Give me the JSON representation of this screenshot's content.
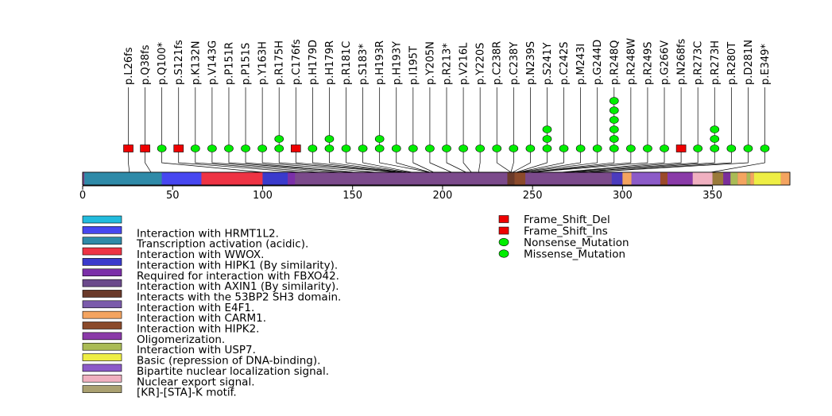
{
  "chart_data": {
    "type": "lollipop",
    "protein_length": 393,
    "axis": {
      "min": 0,
      "max": 393,
      "ticks": [
        0,
        50,
        100,
        150,
        200,
        250,
        300,
        350
      ]
    },
    "track_color": "#7b4a8b",
    "domains": [
      {
        "start": 1,
        "end": 44,
        "color": "#2e8aa8",
        "label": "Transcription activation (acidic)."
      },
      {
        "start": 44,
        "end": 66,
        "color": "#4747f0",
        "label": "Interaction with HRMT1L2."
      },
      {
        "start": 66,
        "end": 100,
        "color": "#ee3344",
        "label": "Interaction with WWOX."
      },
      {
        "start": 100,
        "end": 114,
        "color": "#3a3acc",
        "label": "Interaction with HIPK1 (By similarity)."
      },
      {
        "start": 114,
        "end": 118,
        "color": "#7b2fa8",
        "label": "Required for interaction with FBXO42."
      },
      {
        "start": 236,
        "end": 240,
        "color": "#6a3a2a",
        "label": "Interacts with the 53BP2 SH3 domain."
      },
      {
        "start": 240,
        "end": 246,
        "color": "#8b4a2b",
        "label": "Interaction with HIPK2."
      },
      {
        "start": 294,
        "end": 300,
        "color": "#4b3bbd",
        "label": "Interaction with E4F1."
      },
      {
        "start": 300,
        "end": 305,
        "color": "#f4a460",
        "label": "Interaction with CARM1."
      },
      {
        "start": 305,
        "end": 321,
        "color": "#8c5bc8",
        "label": "Bipartite nuclear localization signal."
      },
      {
        "start": 321,
        "end": 325,
        "color": "#9b4a2b",
        "label": "Interaction with HIPK2."
      },
      {
        "start": 325,
        "end": 339,
        "color": "#8a3aa8",
        "label": "Oligomerization."
      },
      {
        "start": 339,
        "end": 350,
        "color": "#f0b0c0",
        "label": "Nuclear export signal."
      },
      {
        "start": 350,
        "end": 356,
        "color": "#9a7a3a",
        "label": "[KR]-[STA]-K motif."
      },
      {
        "start": 356,
        "end": 360,
        "color": "#7b2f9b",
        "label": "Interaction with FBXO42."
      },
      {
        "start": 360,
        "end": 364,
        "color": "#aabb55",
        "label": "Interaction with USP7."
      },
      {
        "start": 364,
        "end": 369,
        "color": "#f4a460",
        "label": "Interaction with CARM1."
      },
      {
        "start": 369,
        "end": 371,
        "color": "#aabb55",
        "label": "Interaction with USP7."
      },
      {
        "start": 371,
        "end": 373,
        "color": "#f4a460",
        "label": "Interaction with CARM1."
      },
      {
        "start": 373,
        "end": 388,
        "color": "#eeee44",
        "label": "Basic (repression of DNA-binding)."
      },
      {
        "start": 388,
        "end": 393,
        "color": "#f4a460",
        "label": "Interaction with CARM1."
      }
    ],
    "mutations": [
      {
        "label": "p.L26fs",
        "pos": 26,
        "count": 1,
        "type": "Frame_Shift_Del"
      },
      {
        "label": "p.Q38fs",
        "pos": 38,
        "count": 1,
        "type": "Frame_Shift_Del"
      },
      {
        "label": "p.Q100*",
        "pos": 100,
        "count": 1,
        "type": "Nonsense_Mutation"
      },
      {
        "label": "p.S121fs",
        "pos": 121,
        "count": 1,
        "type": "Frame_Shift_Del"
      },
      {
        "label": "p.K132N",
        "pos": 132,
        "count": 1,
        "type": "Missense_Mutation"
      },
      {
        "label": "p.V143G",
        "pos": 143,
        "count": 1,
        "type": "Missense_Mutation"
      },
      {
        "label": "p.P151R",
        "pos": 151,
        "count": 1,
        "type": "Missense_Mutation"
      },
      {
        "label": "p.P151S",
        "pos": 151,
        "count": 1,
        "type": "Missense_Mutation"
      },
      {
        "label": "p.Y163H",
        "pos": 163,
        "count": 1,
        "type": "Missense_Mutation"
      },
      {
        "label": "p.R175H",
        "pos": 175,
        "count": 2,
        "type": "Missense_Mutation"
      },
      {
        "label": "p.C176fs",
        "pos": 176,
        "count": 1,
        "type": "Frame_Shift_Del"
      },
      {
        "label": "p.H179D",
        "pos": 179,
        "count": 1,
        "type": "Missense_Mutation"
      },
      {
        "label": "p.H179R",
        "pos": 179,
        "count": 2,
        "type": "Missense_Mutation"
      },
      {
        "label": "p.R181C",
        "pos": 181,
        "count": 1,
        "type": "Missense_Mutation"
      },
      {
        "label": "p.S183*",
        "pos": 183,
        "count": 1,
        "type": "Nonsense_Mutation"
      },
      {
        "label": "p.H193R",
        "pos": 193,
        "count": 2,
        "type": "Missense_Mutation"
      },
      {
        "label": "p.H193Y",
        "pos": 193,
        "count": 1,
        "type": "Missense_Mutation"
      },
      {
        "label": "p.I195T",
        "pos": 195,
        "count": 1,
        "type": "Missense_Mutation"
      },
      {
        "label": "p.Y205N",
        "pos": 205,
        "count": 1,
        "type": "Missense_Mutation"
      },
      {
        "label": "p.R213*",
        "pos": 213,
        "count": 1,
        "type": "Nonsense_Mutation"
      },
      {
        "label": "p.V216L",
        "pos": 216,
        "count": 1,
        "type": "Missense_Mutation"
      },
      {
        "label": "p.Y220S",
        "pos": 220,
        "count": 1,
        "type": "Missense_Mutation"
      },
      {
        "label": "p.C238R",
        "pos": 238,
        "count": 1,
        "type": "Missense_Mutation"
      },
      {
        "label": "p.C238Y",
        "pos": 238,
        "count": 1,
        "type": "Missense_Mutation"
      },
      {
        "label": "p.N239S",
        "pos": 239,
        "count": 1,
        "type": "Missense_Mutation"
      },
      {
        "label": "p.S241Y",
        "pos": 241,
        "count": 3,
        "type": "Missense_Mutation"
      },
      {
        "label": "p.C242S",
        "pos": 242,
        "count": 1,
        "type": "Missense_Mutation"
      },
      {
        "label": "p.M243I",
        "pos": 243,
        "count": 1,
        "type": "Missense_Mutation"
      },
      {
        "label": "p.G244D",
        "pos": 244,
        "count": 1,
        "type": "Missense_Mutation"
      },
      {
        "label": "p.R248Q",
        "pos": 248,
        "count": 6,
        "type": "Missense_Mutation"
      },
      {
        "label": "p.R248W",
        "pos": 248,
        "count": 1,
        "type": "Missense_Mutation"
      },
      {
        "label": "p.R249S",
        "pos": 249,
        "count": 1,
        "type": "Missense_Mutation"
      },
      {
        "label": "p.G266V",
        "pos": 266,
        "count": 1,
        "type": "Missense_Mutation"
      },
      {
        "label": "p.N268fs",
        "pos": 268,
        "count": 1,
        "type": "Frame_Shift_Del"
      },
      {
        "label": "p.R273C",
        "pos": 273,
        "count": 1,
        "type": "Missense_Mutation"
      },
      {
        "label": "p.R273H",
        "pos": 273,
        "count": 3,
        "type": "Missense_Mutation"
      },
      {
        "label": "p.R280T",
        "pos": 280,
        "count": 1,
        "type": "Missense_Mutation"
      },
      {
        "label": "p.D281N",
        "pos": 281,
        "count": 1,
        "type": "Missense_Mutation"
      },
      {
        "label": "p.E349*",
        "pos": 349,
        "count": 1,
        "type": "Nonsense_Mutation"
      }
    ],
    "domain_legend": [
      {
        "label": "",
        "color": "#22bbdd"
      },
      {
        "label": "Interaction with HRMT1L2.",
        "color": "#4747f0"
      },
      {
        "label": "Transcription activation (acidic).",
        "color": "#2e8aa8"
      },
      {
        "label": "Interaction with WWOX.",
        "color": "#ee3344"
      },
      {
        "label": "Interaction with HIPK1 (By similarity).",
        "color": "#3a3acc"
      },
      {
        "label": "Required for interaction with FBXO42.",
        "color": "#7b2fa8"
      },
      {
        "label": "Interaction with AXIN1 (By similarity).",
        "color": "#6b4a8b"
      },
      {
        "label": "Interacts with the 53BP2 SH3 domain.",
        "color": "#6a3a2a"
      },
      {
        "label": "Interaction with E4F1.",
        "color": "#7b5bab"
      },
      {
        "label": "Interaction with CARM1.",
        "color": "#f4a460"
      },
      {
        "label": "Interaction with HIPK2.",
        "color": "#8b4a2b"
      },
      {
        "label": "Oligomerization.",
        "color": "#8a3aa8"
      },
      {
        "label": "Interaction with USP7.",
        "color": "#aabb55"
      },
      {
        "label": "Basic (repression of DNA-binding).",
        "color": "#eeee44"
      },
      {
        "label": "Bipartite nuclear localization signal.",
        "color": "#8c5bc8"
      },
      {
        "label": "Nuclear export signal.",
        "color": "#f0b0c0"
      },
      {
        "label": "[KR]-[STA]-K motif.",
        "color": "#aaa070"
      }
    ],
    "mutation_legend": [
      {
        "label": "Frame_Shift_Del",
        "shape": "square",
        "color": "#ee0000"
      },
      {
        "label": "Frame_Shift_Ins",
        "shape": "square",
        "color": "#ee0000"
      },
      {
        "label": "Nonsense_Mutation",
        "shape": "circle",
        "color": "#00ee00"
      },
      {
        "label": "Missense_Mutation",
        "shape": "circle",
        "color": "#00ee00"
      }
    ]
  }
}
